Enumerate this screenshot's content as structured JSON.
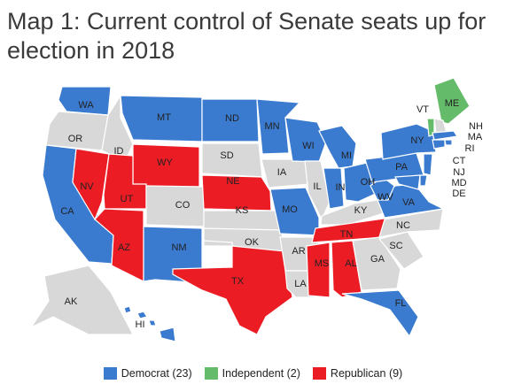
{
  "title": "Map 1: Current control of Senate seats up for election in 2018",
  "colors": {
    "democrat": "#3a7bd0",
    "independent": "#64bb6a",
    "republican": "#ec1c24",
    "none": "#d8d8d8",
    "border": "#ffffff"
  },
  "legend": [
    {
      "key": "democrat",
      "label": "Democrat (23)"
    },
    {
      "key": "independent",
      "label": "Independent (2)"
    },
    {
      "key": "republican",
      "label": "Republican (9)"
    }
  ],
  "states": [
    {
      "abbr": "WA",
      "party": "democrat"
    },
    {
      "abbr": "OR",
      "party": "none"
    },
    {
      "abbr": "CA",
      "party": "democrat"
    },
    {
      "abbr": "NV",
      "party": "republican"
    },
    {
      "abbr": "ID",
      "party": "none"
    },
    {
      "abbr": "MT",
      "party": "democrat"
    },
    {
      "abbr": "WY",
      "party": "republican"
    },
    {
      "abbr": "UT",
      "party": "republican"
    },
    {
      "abbr": "AZ",
      "party": "republican"
    },
    {
      "abbr": "CO",
      "party": "none"
    },
    {
      "abbr": "NM",
      "party": "democrat"
    },
    {
      "abbr": "ND",
      "party": "democrat"
    },
    {
      "abbr": "SD",
      "party": "none"
    },
    {
      "abbr": "NE",
      "party": "republican"
    },
    {
      "abbr": "KS",
      "party": "none"
    },
    {
      "abbr": "OK",
      "party": "none"
    },
    {
      "abbr": "TX",
      "party": "republican"
    },
    {
      "abbr": "MN",
      "party": "democrat"
    },
    {
      "abbr": "IA",
      "party": "none"
    },
    {
      "abbr": "MO",
      "party": "democrat"
    },
    {
      "abbr": "AR",
      "party": "none"
    },
    {
      "abbr": "LA",
      "party": "none"
    },
    {
      "abbr": "WI",
      "party": "democrat"
    },
    {
      "abbr": "IL",
      "party": "none"
    },
    {
      "abbr": "MI",
      "party": "democrat"
    },
    {
      "abbr": "IN",
      "party": "democrat"
    },
    {
      "abbr": "OH",
      "party": "democrat"
    },
    {
      "abbr": "KY",
      "party": "none"
    },
    {
      "abbr": "TN",
      "party": "republican"
    },
    {
      "abbr": "MS",
      "party": "republican"
    },
    {
      "abbr": "AL",
      "party": "republican"
    },
    {
      "abbr": "GA",
      "party": "none"
    },
    {
      "abbr": "FL",
      "party": "democrat"
    },
    {
      "abbr": "SC",
      "party": "none"
    },
    {
      "abbr": "NC",
      "party": "none"
    },
    {
      "abbr": "VA",
      "party": "democrat"
    },
    {
      "abbr": "WV",
      "party": "democrat"
    },
    {
      "abbr": "PA",
      "party": "democrat"
    },
    {
      "abbr": "NY",
      "party": "democrat"
    },
    {
      "abbr": "VT",
      "party": "independent"
    },
    {
      "abbr": "ME",
      "party": "independent"
    },
    {
      "abbr": "NH",
      "party": "none"
    },
    {
      "abbr": "MA",
      "party": "democrat"
    },
    {
      "abbr": "RI",
      "party": "democrat"
    },
    {
      "abbr": "CT",
      "party": "democrat"
    },
    {
      "abbr": "NJ",
      "party": "democrat"
    },
    {
      "abbr": "DE",
      "party": "democrat"
    },
    {
      "abbr": "MD",
      "party": "democrat"
    },
    {
      "abbr": "AK",
      "party": "none"
    },
    {
      "abbr": "HI",
      "party": "democrat"
    }
  ]
}
